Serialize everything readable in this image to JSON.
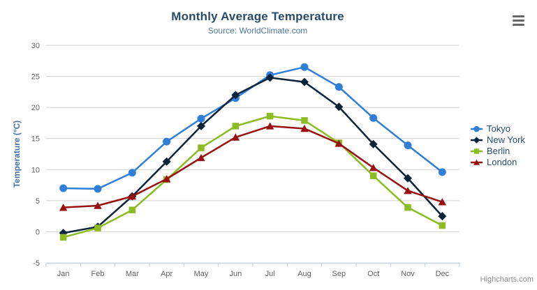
{
  "chart": {
    "credits": "Highcharts.com",
    "title_color": "#274b6d",
    "subtitle_color": "#4d759e",
    "axis_label_color": "#606060",
    "axis_title_color": "#4572a7",
    "grid_color": "#d2d2d2",
    "axis_line_color": "#c0d0e0",
    "legend_text_color": "#274b6d",
    "export_icon": "hamburger-icon"
  },
  "chart_data": {
    "type": "line",
    "title": "Monthly Average Temperature",
    "subtitle": "Source: WorldClimate.com",
    "xlabel": "",
    "ylabel": "Temperature (°C)",
    "ylim": [
      -5,
      30
    ],
    "ytick_interval": 5,
    "grid": true,
    "legend_position": "right",
    "categories": [
      "Jan",
      "Feb",
      "Mar",
      "Apr",
      "May",
      "Jun",
      "Jul",
      "Aug",
      "Sep",
      "Oct",
      "Nov",
      "Dec"
    ],
    "series": [
      {
        "name": "Tokyo",
        "color": "#2f7ed8",
        "marker": "circle",
        "values": [
          7.0,
          6.9,
          9.5,
          14.5,
          18.2,
          21.5,
          25.2,
          26.5,
          23.3,
          18.3,
          13.9,
          9.6
        ]
      },
      {
        "name": "New York",
        "color": "#0d233a",
        "marker": "diamond",
        "values": [
          -0.2,
          0.8,
          5.7,
          11.3,
          17.0,
          22.0,
          24.8,
          24.1,
          20.1,
          14.1,
          8.6,
          2.5
        ]
      },
      {
        "name": "Berlin",
        "color": "#8bbc21",
        "marker": "square",
        "values": [
          -0.9,
          0.6,
          3.5,
          8.4,
          13.5,
          17.0,
          18.6,
          17.9,
          14.3,
          9.0,
          3.9,
          1.0
        ]
      },
      {
        "name": "London",
        "color": "#991111",
        "marker": "triangle",
        "values": [
          3.9,
          4.2,
          5.7,
          8.5,
          11.9,
          15.2,
          17.0,
          16.6,
          14.2,
          10.3,
          6.6,
          4.8
        ]
      }
    ]
  }
}
